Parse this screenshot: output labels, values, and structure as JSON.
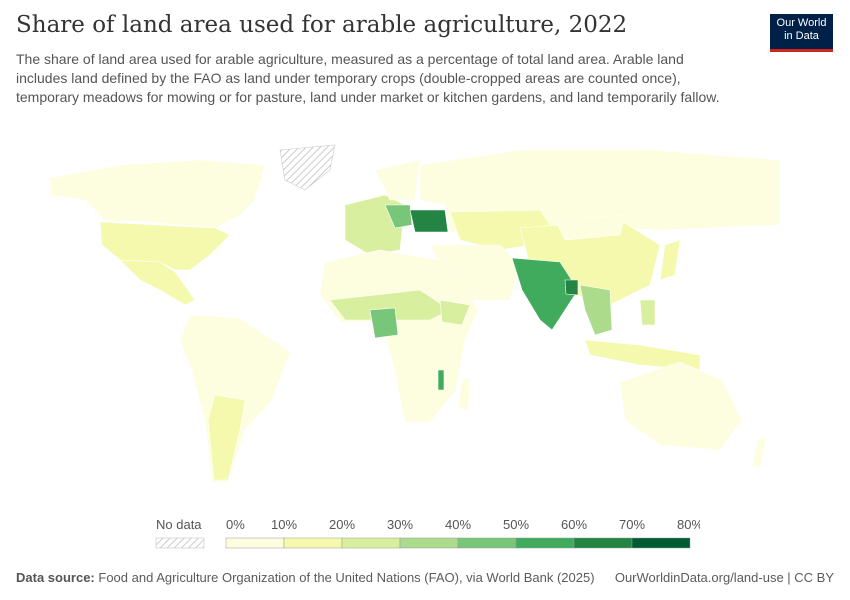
{
  "header": {
    "title": "Share of land area used for arable agriculture, 2022",
    "subtitle": "The share of land area used for arable agriculture, measured as a percentage of total land area. Arable land includes land defined by the FAO as land under temporary crops (double-cropped areas are counted once), temporary meadows for mowing or for pasture, land under market or kitchen gardens, and land temporarily fallow.",
    "logo_line1": "Our World",
    "logo_line2": "in Data"
  },
  "legend": {
    "no_data": "No data",
    "ticks": [
      "0%",
      "10%",
      "20%",
      "30%",
      "40%",
      "50%",
      "60%",
      "70%",
      "80%"
    ],
    "colors": [
      "#fdfde0",
      "#f4f9ad",
      "#d9efa0",
      "#acdb8c",
      "#78c679",
      "#41ab5d",
      "#238443",
      "#005a32"
    ]
  },
  "footer": {
    "source_label": "Data source:",
    "source": "Food and Agriculture Organization of the United Nations (FAO), via World Bank (2025)",
    "link": "OurWorldinData.org/land-use | CC BY"
  }
}
